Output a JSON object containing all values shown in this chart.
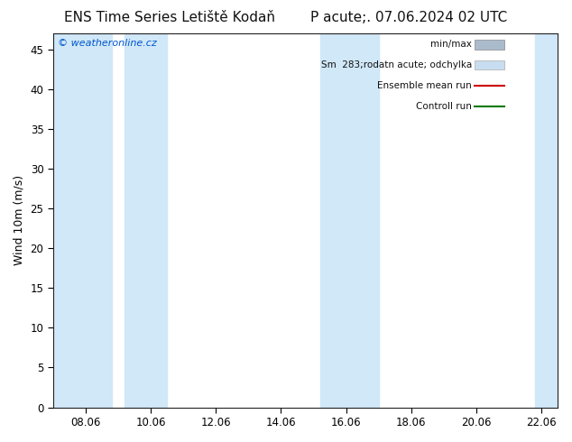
{
  "title_left": "ENS Time Series Letiště Kodaň",
  "title_right": "P acute;. 07.06.2024 02 UTC",
  "ylabel": "Wind 10m (m/s)",
  "bg_color": "#ffffff",
  "plot_bg_color": "#ffffff",
  "ylim": [
    0,
    47
  ],
  "yticks": [
    0,
    5,
    10,
    15,
    20,
    25,
    30,
    35,
    40,
    45
  ],
  "xtick_labels": [
    "08.06",
    "10.06",
    "12.06",
    "14.06",
    "16.06",
    "18.06",
    "20.06",
    "22.06"
  ],
  "x_start": 7.0,
  "x_end": 22.5,
  "blue_bands": [
    {
      "xmin": 7.0,
      "xmax": 8.8
    },
    {
      "xmin": 9.2,
      "xmax": 10.5
    },
    {
      "xmin": 15.2,
      "xmax": 17.0
    },
    {
      "xmin": 21.8,
      "xmax": 22.5
    }
  ],
  "band_color": "#d0e8f8",
  "watermark": "© weatheronline.cz",
  "watermark_color": "#0055cc",
  "legend_labels": [
    "min/max",
    "Sm  283;rodatn acute; odchylka",
    "Ensemble mean run",
    "Controll run"
  ],
  "legend_patch1_color": "#aabbcc",
  "legend_patch2_color": "#c8ddf0",
  "legend_line1_color": "#cc0000",
  "legend_line2_color": "#007700",
  "title_fontsize": 11,
  "axis_fontsize": 9,
  "tick_fontsize": 8.5,
  "legend_fontsize": 7.5
}
